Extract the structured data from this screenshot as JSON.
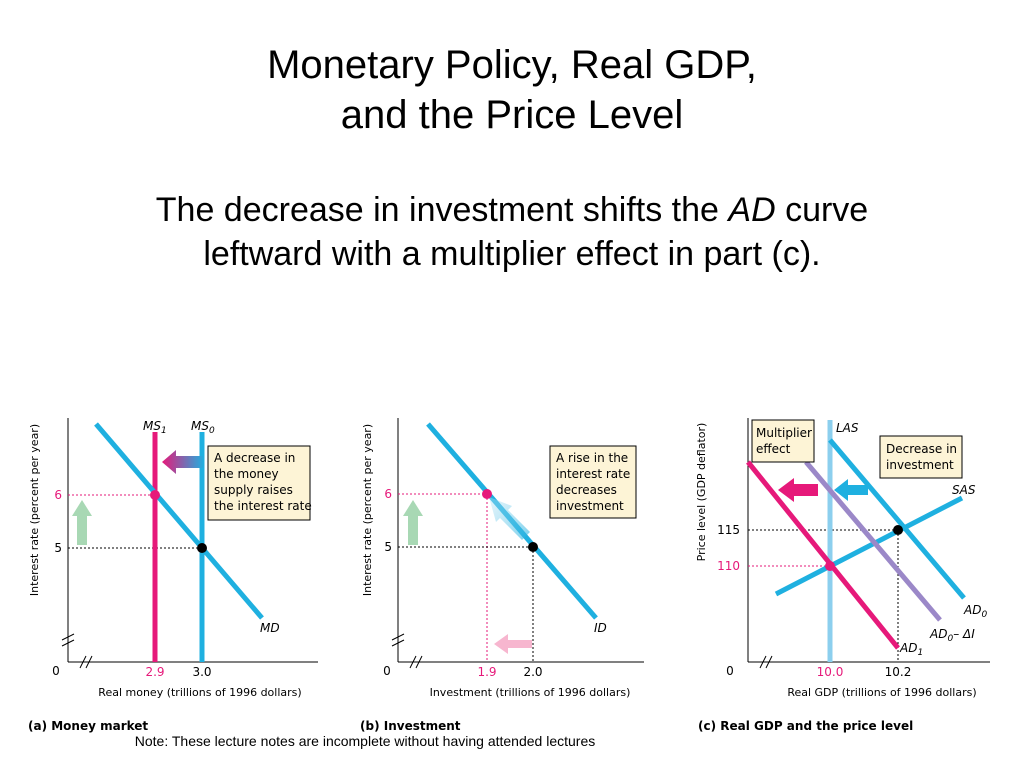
{
  "slide": {
    "title_line1": "Monetary Policy, Real GDP,",
    "title_line2": "and the Price Level",
    "subtitle_part1": "The decrease in investment shifts the ",
    "subtitle_ad": "AD",
    "subtitle_part2": " curve",
    "subtitle_line2": "leftward with a multiplier effect in part (c).",
    "footnote": "Note: These lecture notes are incomplete without having attended lectures"
  },
  "colors": {
    "curve_blue": "#1fb0e0",
    "magenta": "#e6197a",
    "purple": "#9b88c8",
    "las_blue": "#8ccfee",
    "callout_fill": "#fdf4d6",
    "arrow_green": "#a8d8b4"
  },
  "panels": {
    "a": {
      "caption": "(a) Money market",
      "ylabel": "Interest rate (percent per year)",
      "xlabel": "Real money (trillions of 1996 dollars)",
      "origin": "0",
      "ms1_label": "MS",
      "ms1_sub": "1",
      "ms0_label": "MS",
      "ms0_sub": "0",
      "md_label": "MD",
      "callout": [
        "A decrease in",
        "the money",
        "supply raises",
        "the interest rate"
      ],
      "tick_6": "6",
      "tick_5": "5",
      "tick_29": "2.9",
      "tick_30": "3.0"
    },
    "b": {
      "caption": "(b) Investment",
      "ylabel": "Interest rate (percent per year)",
      "xlabel": "Investment (trillions of 1996 dollars)",
      "origin": "0",
      "id_label": "ID",
      "callout": [
        "A rise in the",
        "interest rate",
        "decreases",
        "investment"
      ],
      "tick_6": "6",
      "tick_5": "5",
      "tick_19": "1.9",
      "tick_20": "2.0"
    },
    "c": {
      "caption": "(c) Real GDP and the price level",
      "ylabel": "Price level (GDP deflator)",
      "xlabel": "Real GDP (trillions of 1996 dollars)",
      "origin": "0",
      "las_label": "LAS",
      "sas_label": "SAS",
      "ad0_label": "AD",
      "ad0_sub": "0",
      "ad0_di_label": "AD",
      "ad0_di_sub": "0",
      "ad0_di_suffix": "– ΔI",
      "ad1_label": "AD",
      "ad1_sub": "1",
      "callout_multiplier": [
        "Multiplier",
        "effect"
      ],
      "callout_decrease": [
        "Decrease in",
        "investment"
      ],
      "tick_115": "115",
      "tick_110": "110",
      "tick_100": "10.0",
      "tick_102": "10.2"
    }
  }
}
